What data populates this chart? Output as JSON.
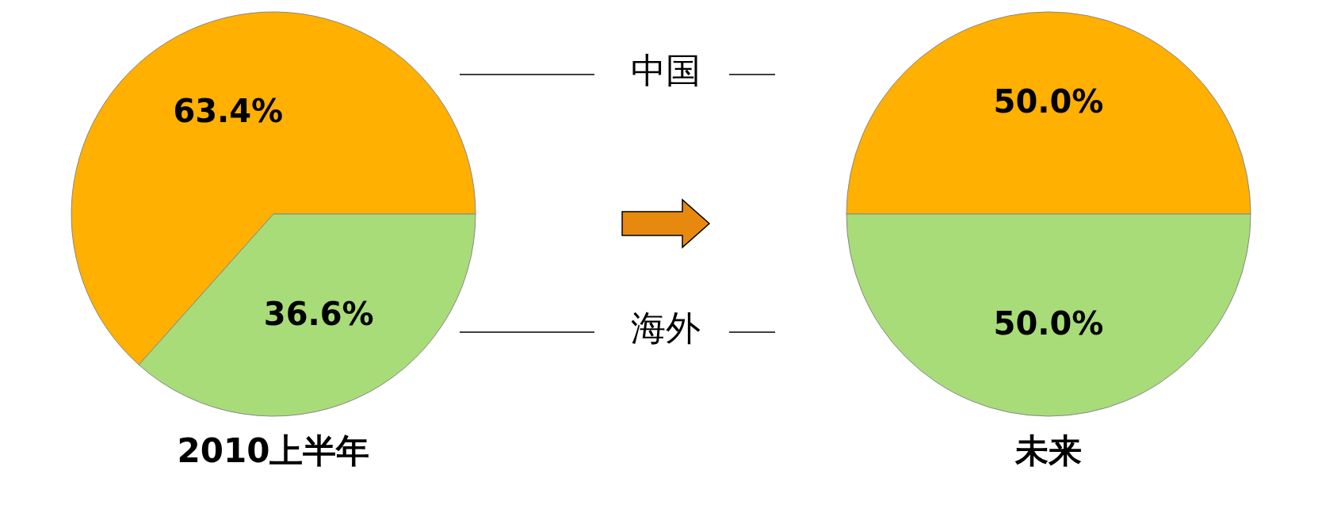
{
  "chart_data": [
    {
      "type": "pie",
      "title": "2010上半年",
      "categories": [
        "中国",
        "海外"
      ],
      "values": [
        63.4,
        36.6
      ],
      "colors": [
        "#ffb000",
        "#a8dc78"
      ],
      "value_labels": [
        "63.4%",
        "36.6%"
      ]
    },
    {
      "type": "pie",
      "title": "未来",
      "categories": [
        null,
        null
      ],
      "values": [
        50,
        50
      ],
      "colors": [
        "#ffb000",
        "#a8dc78"
      ],
      "value_labels": [
        "50.0%",
        "50.0%"
      ]
    }
  ]
}
